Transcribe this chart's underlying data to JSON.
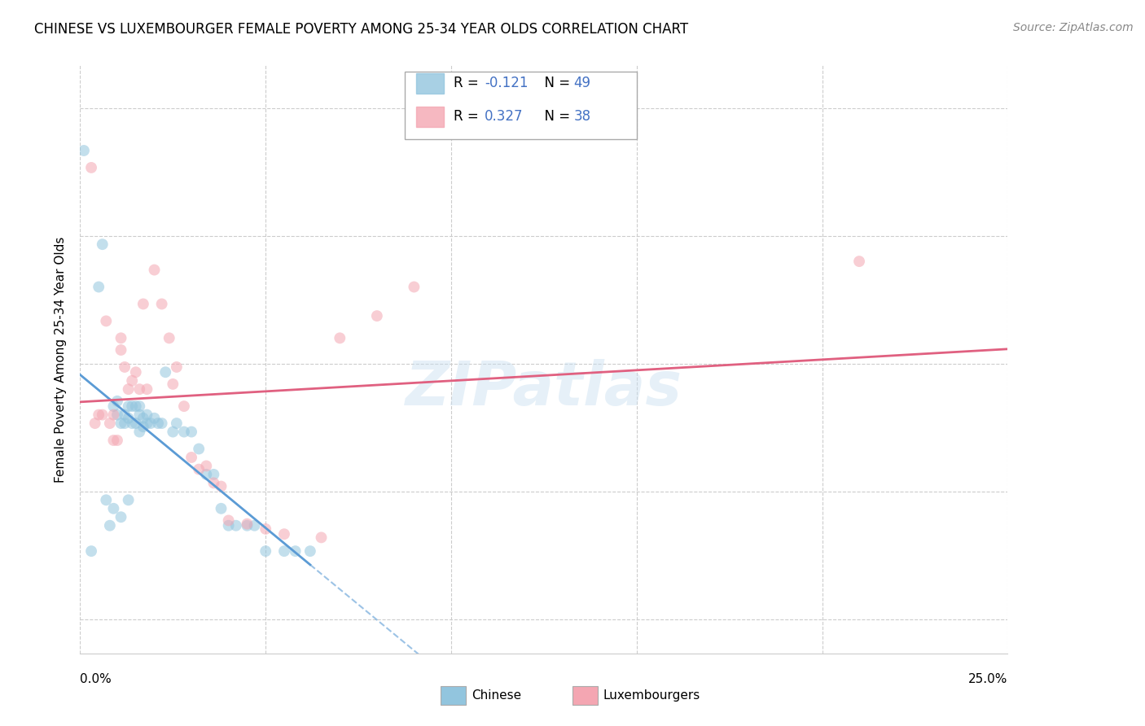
{
  "title": "CHINESE VS LUXEMBOURGER FEMALE POVERTY AMONG 25-34 YEAR OLDS CORRELATION CHART",
  "source": "Source: ZipAtlas.com",
  "ylabel": "Female Poverty Among 25-34 Year Olds",
  "xlim": [
    0.0,
    0.25
  ],
  "ylim": [
    -0.02,
    0.325
  ],
  "x_ticks": [
    0.0,
    0.05,
    0.1,
    0.15,
    0.2,
    0.25
  ],
  "y_ticks": [
    0.0,
    0.075,
    0.15,
    0.225,
    0.3
  ],
  "grid_color": "#cccccc",
  "background_color": "#ffffff",
  "watermark": "ZIPatlas",
  "chinese_color": "#92c5de",
  "luxembourg_color": "#f4a6b2",
  "chinese_R": -0.121,
  "chinese_N": 49,
  "luxembourg_R": 0.327,
  "luxembourg_N": 38,
  "chinese_line_color": "#5b9bd5",
  "luxembourg_line_color": "#e06080",
  "legend_text_color": "#4472c4",
  "chinese_x": [
    0.001,
    0.003,
    0.005,
    0.006,
    0.007,
    0.008,
    0.009,
    0.009,
    0.01,
    0.01,
    0.011,
    0.011,
    0.012,
    0.012,
    0.013,
    0.013,
    0.013,
    0.014,
    0.014,
    0.015,
    0.015,
    0.016,
    0.016,
    0.016,
    0.017,
    0.017,
    0.018,
    0.018,
    0.019,
    0.02,
    0.021,
    0.022,
    0.023,
    0.025,
    0.026,
    0.028,
    0.03,
    0.032,
    0.034,
    0.036,
    0.038,
    0.04,
    0.042,
    0.045,
    0.047,
    0.05,
    0.055,
    0.058,
    0.062
  ],
  "chinese_y": [
    0.275,
    0.04,
    0.195,
    0.22,
    0.07,
    0.055,
    0.125,
    0.065,
    0.128,
    0.12,
    0.115,
    0.06,
    0.12,
    0.115,
    0.125,
    0.118,
    0.07,
    0.125,
    0.115,
    0.125,
    0.115,
    0.125,
    0.12,
    0.11,
    0.118,
    0.113,
    0.12,
    0.115,
    0.115,
    0.118,
    0.115,
    0.115,
    0.145,
    0.11,
    0.115,
    0.11,
    0.11,
    0.1,
    0.085,
    0.085,
    0.065,
    0.055,
    0.055,
    0.055,
    0.055,
    0.04,
    0.04,
    0.04,
    0.04
  ],
  "luxembourg_x": [
    0.003,
    0.004,
    0.005,
    0.006,
    0.007,
    0.008,
    0.009,
    0.009,
    0.01,
    0.011,
    0.011,
    0.012,
    0.013,
    0.014,
    0.015,
    0.016,
    0.017,
    0.018,
    0.02,
    0.022,
    0.024,
    0.025,
    0.026,
    0.028,
    0.03,
    0.032,
    0.034,
    0.036,
    0.038,
    0.04,
    0.045,
    0.05,
    0.055,
    0.065,
    0.07,
    0.08,
    0.09,
    0.21
  ],
  "luxembourg_y": [
    0.265,
    0.115,
    0.12,
    0.12,
    0.175,
    0.115,
    0.12,
    0.105,
    0.105,
    0.165,
    0.158,
    0.148,
    0.135,
    0.14,
    0.145,
    0.135,
    0.185,
    0.135,
    0.205,
    0.185,
    0.165,
    0.138,
    0.148,
    0.125,
    0.095,
    0.088,
    0.09,
    0.08,
    0.078,
    0.058,
    0.056,
    0.053,
    0.05,
    0.048,
    0.165,
    0.178,
    0.195,
    0.21
  ]
}
